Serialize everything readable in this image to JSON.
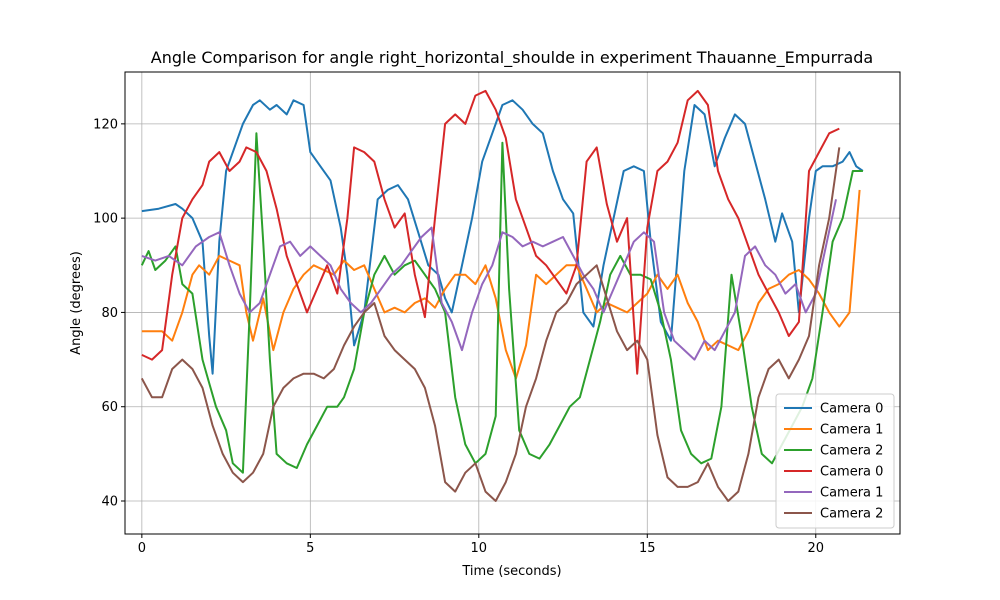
{
  "chart_data": {
    "type": "line",
    "title": "Angle Comparison for angle right_horizontal_shoulde in experiment Thauanne_Empurrada",
    "xlabel": "Time (seconds)",
    "ylabel": "Angle (degrees)",
    "xlim": [
      -0.5,
      22.5
    ],
    "ylim": [
      33,
      131
    ],
    "xticks": [
      0,
      5,
      10,
      15,
      20
    ],
    "yticks": [
      40,
      60,
      80,
      100,
      120
    ],
    "grid": true,
    "legend_position": "lower right",
    "series": [
      {
        "name": "Camera 0",
        "color": "#1f77b4",
        "x": [
          0,
          0.5,
          1,
          1.2,
          1.5,
          1.8,
          2.0,
          2.1,
          2.3,
          2.5,
          2.8,
          3.0,
          3.3,
          3.5,
          3.8,
          4.0,
          4.3,
          4.5,
          4.8,
          5.0,
          5.3,
          5.6,
          5.9,
          6.1,
          6.3,
          6.6,
          7.0,
          7.3,
          7.6,
          7.9,
          8.2,
          8.5,
          8.8,
          9.0,
          9.2,
          9.5,
          9.8,
          10.1,
          10.4,
          10.7,
          11.0,
          11.3,
          11.6,
          11.9,
          12.2,
          12.5,
          12.8,
          13.1,
          13.4,
          13.7,
          14.0,
          14.3,
          14.6,
          14.9,
          15.1,
          15.4,
          15.7,
          15.9,
          16.1,
          16.4,
          16.7,
          17.0,
          17.3,
          17.6,
          17.9,
          18.2,
          18.5,
          18.8,
          19.0,
          19.3,
          19.5,
          19.8,
          20.0,
          20.2,
          20.5,
          20.8,
          21.0,
          21.2,
          21.4
        ],
        "y": [
          101.5,
          102,
          103,
          102,
          100,
          95,
          75,
          67,
          95,
          110,
          116,
          120,
          124,
          125,
          123,
          124,
          122,
          125,
          124,
          114,
          111,
          108,
          98,
          88,
          73,
          80,
          104,
          106,
          107,
          104,
          97,
          90,
          88,
          83,
          80,
          90,
          100,
          112,
          118,
          124,
          125,
          123,
          120,
          118,
          110,
          104,
          101,
          80,
          77,
          90,
          100,
          110,
          111,
          110,
          95,
          78,
          74,
          92,
          110,
          124,
          122,
          111,
          117,
          122,
          120,
          112,
          104,
          95,
          101,
          95,
          80,
          100,
          110,
          111,
          111,
          112,
          114,
          111,
          110
        ]
      },
      {
        "name": "Camera 1",
        "color": "#ff7f0e",
        "x": [
          0,
          0.3,
          0.6,
          0.9,
          1.2,
          1.5,
          1.7,
          2.0,
          2.3,
          2.6,
          2.9,
          3.1,
          3.3,
          3.6,
          3.9,
          4.2,
          4.5,
          4.8,
          5.1,
          5.4,
          5.7,
          6.0,
          6.3,
          6.6,
          6.9,
          7.2,
          7.5,
          7.8,
          8.1,
          8.4,
          8.7,
          9.0,
          9.3,
          9.6,
          9.9,
          10.2,
          10.5,
          10.8,
          11.1,
          11.4,
          11.7,
          12.0,
          12.3,
          12.6,
          12.9,
          13.2,
          13.5,
          13.8,
          14.1,
          14.4,
          14.7,
          15.0,
          15.3,
          15.6,
          15.9,
          16.2,
          16.5,
          16.8,
          17.1,
          17.4,
          17.7,
          18.0,
          18.3,
          18.6,
          18.9,
          19.2,
          19.5,
          19.8,
          20.1,
          20.4,
          20.7,
          21.0,
          21.3
        ],
        "y": [
          76,
          76,
          76,
          74,
          80,
          88,
          90,
          88,
          92,
          91,
          90,
          80,
          74,
          83,
          72,
          80,
          85,
          88,
          90,
          89,
          88,
          91,
          89,
          90,
          85,
          80,
          81,
          80,
          82,
          83,
          81,
          85,
          88,
          88,
          86,
          90,
          83,
          72,
          66,
          73,
          88,
          86,
          88,
          90,
          90,
          85,
          80,
          82,
          81,
          80,
          82,
          84,
          88,
          85,
          88,
          82,
          78,
          72,
          74,
          73,
          72,
          76,
          82,
          85,
          86,
          88,
          89,
          87,
          84,
          80,
          77,
          80,
          106
        ]
      },
      {
        "name": "Camera 2",
        "color": "#2ca02c",
        "x": [
          0,
          0.2,
          0.4,
          0.7,
          1.0,
          1.2,
          1.5,
          1.8,
          2.0,
          2.2,
          2.5,
          2.7,
          3.0,
          3.2,
          3.4,
          3.6,
          3.8,
          4.0,
          4.3,
          4.6,
          4.9,
          5.2,
          5.5,
          5.8,
          6.0,
          6.3,
          6.6,
          6.9,
          7.2,
          7.5,
          7.8,
          8.1,
          8.4,
          8.7,
          9.0,
          9.3,
          9.6,
          9.9,
          10.2,
          10.5,
          10.7,
          10.9,
          11.2,
          11.5,
          11.8,
          12.1,
          12.4,
          12.7,
          13.0,
          13.3,
          13.6,
          13.9,
          14.2,
          14.5,
          14.8,
          15.1,
          15.4,
          15.7,
          16.0,
          16.3,
          16.6,
          16.9,
          17.2,
          17.5,
          17.8,
          18.1,
          18.4,
          18.7,
          19.0,
          19.3,
          19.6,
          19.9,
          20.2,
          20.5,
          20.8,
          21.1,
          21.4
        ],
        "y": [
          90,
          93,
          89,
          91,
          94,
          86,
          84,
          70,
          65,
          60,
          55,
          48,
          46,
          80,
          118,
          95,
          70,
          50,
          48,
          47,
          52,
          56,
          60,
          60,
          62,
          68,
          80,
          88,
          92,
          88,
          90,
          91,
          88,
          85,
          80,
          62,
          52,
          48,
          50,
          58,
          116,
          85,
          55,
          50,
          49,
          52,
          56,
          60,
          62,
          70,
          78,
          88,
          92,
          88,
          88,
          87,
          80,
          70,
          55,
          50,
          48,
          49,
          60,
          88,
          75,
          60,
          50,
          48,
          52,
          56,
          60,
          66,
          80,
          95,
          100,
          110,
          110
        ]
      },
      {
        "name": "Camera 0",
        "color": "#d62728",
        "x": [
          0,
          0.3,
          0.6,
          0.9,
          1.2,
          1.5,
          1.8,
          2.0,
          2.3,
          2.6,
          2.9,
          3.1,
          3.4,
          3.7,
          4.0,
          4.3,
          4.6,
          4.9,
          5.2,
          5.5,
          5.8,
          6.1,
          6.3,
          6.6,
          6.9,
          7.2,
          7.5,
          7.8,
          8.1,
          8.4,
          8.7,
          9.0,
          9.3,
          9.6,
          9.9,
          10.2,
          10.5,
          10.8,
          11.1,
          11.4,
          11.7,
          12.0,
          12.3,
          12.6,
          12.9,
          13.2,
          13.5,
          13.8,
          14.1,
          14.4,
          14.7,
          15.0,
          15.3,
          15.6,
          15.9,
          16.2,
          16.5,
          16.8,
          17.1,
          17.4,
          17.7,
          18.0,
          18.3,
          18.6,
          18.9,
          19.2,
          19.5,
          19.8,
          20.1,
          20.4,
          20.7
        ],
        "y": [
          71,
          70,
          72,
          88,
          100,
          104,
          107,
          112,
          114,
          110,
          112,
          115,
          114,
          110,
          102,
          92,
          86,
          80,
          85,
          90,
          84,
          100,
          115,
          114,
          112,
          104,
          98,
          101,
          88,
          79,
          100,
          120,
          122,
          120,
          126,
          127,
          123,
          117,
          104,
          98,
          92,
          90,
          87,
          84,
          90,
          112,
          115,
          103,
          95,
          100,
          67,
          98,
          110,
          112,
          116,
          125,
          127,
          124,
          110,
          104,
          100,
          94,
          88,
          84,
          80,
          75,
          78,
          110,
          114,
          118,
          119
        ]
      },
      {
        "name": "Camera 1",
        "color": "#9467bd",
        "x": [
          0,
          0.4,
          0.8,
          1.2,
          1.6,
          2.0,
          2.3,
          2.6,
          2.9,
          3.2,
          3.5,
          3.8,
          4.1,
          4.4,
          4.7,
          5.0,
          5.3,
          5.6,
          5.9,
          6.2,
          6.5,
          6.8,
          7.1,
          7.4,
          7.7,
          8.0,
          8.3,
          8.6,
          8.9,
          9.2,
          9.5,
          9.8,
          10.1,
          10.4,
          10.7,
          11.0,
          11.3,
          11.6,
          11.9,
          12.2,
          12.5,
          12.8,
          13.1,
          13.4,
          13.7,
          14.0,
          14.3,
          14.6,
          14.9,
          15.2,
          15.5,
          15.8,
          16.1,
          16.4,
          16.7,
          17.0,
          17.3,
          17.6,
          17.9,
          18.2,
          18.5,
          18.8,
          19.1,
          19.4,
          19.7,
          20.0,
          20.3,
          20.6
        ],
        "y": [
          92,
          91,
          92,
          90,
          94,
          96,
          97,
          90,
          84,
          80,
          82,
          88,
          94,
          95,
          92,
          94,
          92,
          90,
          85,
          82,
          80,
          82,
          85,
          88,
          90,
          93,
          96,
          98,
          82,
          78,
          72,
          80,
          86,
          90,
          97,
          96,
          94,
          95,
          94,
          95,
          96,
          92,
          88,
          85,
          80,
          85,
          90,
          95,
          97,
          95,
          80,
          74,
          72,
          70,
          74,
          72,
          76,
          80,
          92,
          94,
          90,
          88,
          84,
          86,
          80,
          84,
          94,
          104
        ]
      },
      {
        "name": "Camera 2",
        "color": "#8c564b",
        "x": [
          0,
          0.3,
          0.6,
          0.9,
          1.2,
          1.5,
          1.8,
          2.1,
          2.4,
          2.7,
          3.0,
          3.3,
          3.6,
          3.9,
          4.2,
          4.5,
          4.8,
          5.1,
          5.4,
          5.7,
          6.0,
          6.3,
          6.6,
          6.9,
          7.2,
          7.5,
          7.8,
          8.1,
          8.4,
          8.7,
          9.0,
          9.3,
          9.6,
          9.9,
          10.2,
          10.5,
          10.8,
          11.1,
          11.4,
          11.7,
          12.0,
          12.3,
          12.6,
          12.9,
          13.2,
          13.5,
          13.8,
          14.1,
          14.4,
          14.7,
          15.0,
          15.3,
          15.6,
          15.9,
          16.2,
          16.5,
          16.8,
          17.1,
          17.4,
          17.7,
          18.0,
          18.3,
          18.6,
          18.9,
          19.2,
          19.5,
          19.8,
          20.1,
          20.4,
          20.7
        ],
        "y": [
          66,
          62,
          62,
          68,
          70,
          68,
          64,
          56,
          50,
          46,
          44,
          46,
          50,
          60,
          64,
          66,
          67,
          67,
          66,
          68,
          73,
          77,
          80,
          82,
          75,
          72,
          70,
          68,
          64,
          56,
          44,
          42,
          46,
          48,
          42,
          40,
          44,
          50,
          60,
          66,
          74,
          80,
          82,
          86,
          88,
          90,
          83,
          76,
          72,
          74,
          70,
          54,
          45,
          43,
          43,
          44,
          48,
          43,
          40,
          42,
          50,
          62,
          68,
          70,
          66,
          70,
          75,
          90,
          100,
          115
        ]
      }
    ]
  }
}
